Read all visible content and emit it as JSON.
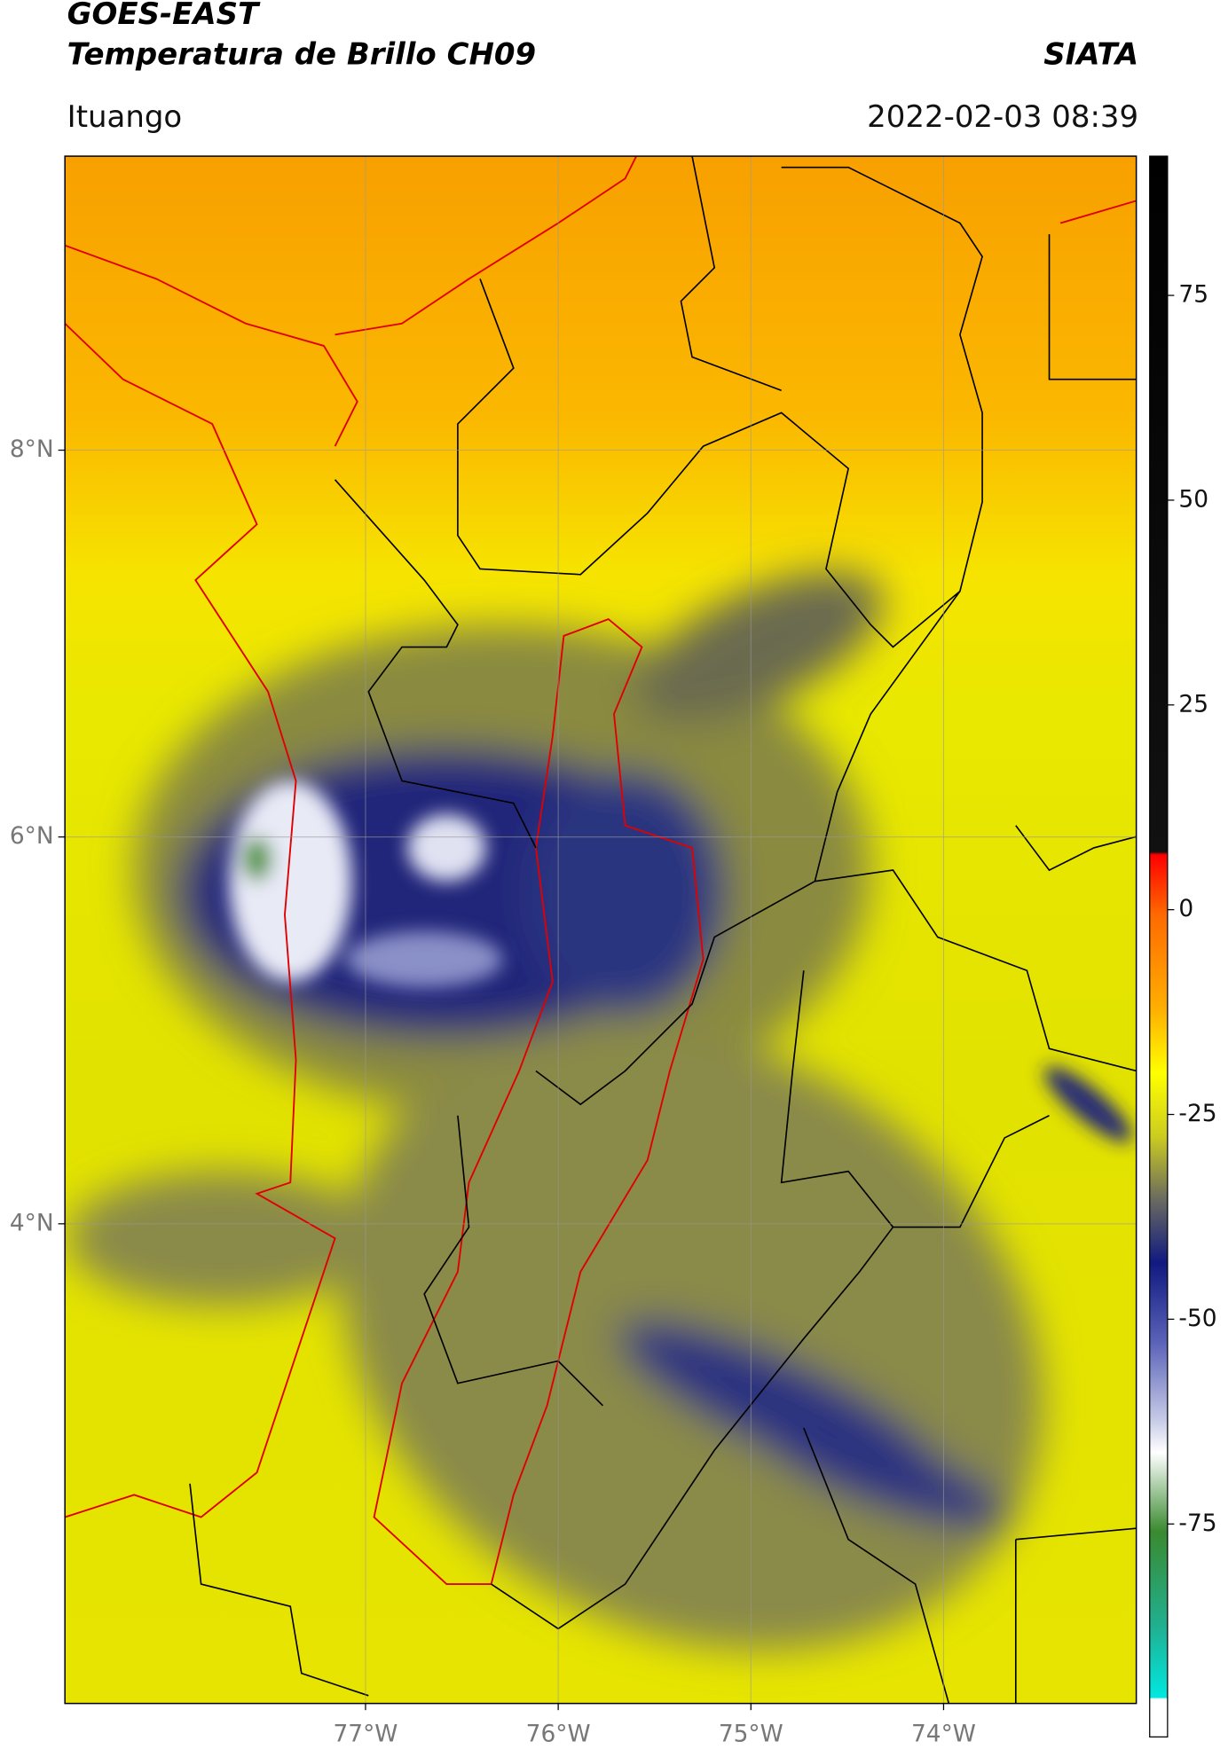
{
  "header": {
    "title": "GOES-EAST",
    "subtitle": "Temperatura de Brillo CH09",
    "brand": "SIATA",
    "location": "Ituango",
    "datetime": "2022-02-03 08:39"
  },
  "map": {
    "xlim": [
      -78.56,
      -73.0
    ],
    "ylim": [
      1.52,
      9.52
    ],
    "xticks": [
      {
        "value": -77,
        "label": "77°W"
      },
      {
        "value": -76,
        "label": "76°W"
      },
      {
        "value": -75,
        "label": "75°W"
      },
      {
        "value": -74,
        "label": "74°W"
      }
    ],
    "yticks": [
      {
        "value": 8,
        "label": "8°N"
      },
      {
        "value": 6,
        "label": "6°N"
      },
      {
        "value": 4,
        "label": "4°N"
      }
    ],
    "grid": true
  },
  "colorbar": {
    "clim": [
      -101,
      92
    ],
    "ticks": [
      75,
      50,
      25,
      0,
      -25,
      -50,
      -75
    ]
  }
}
